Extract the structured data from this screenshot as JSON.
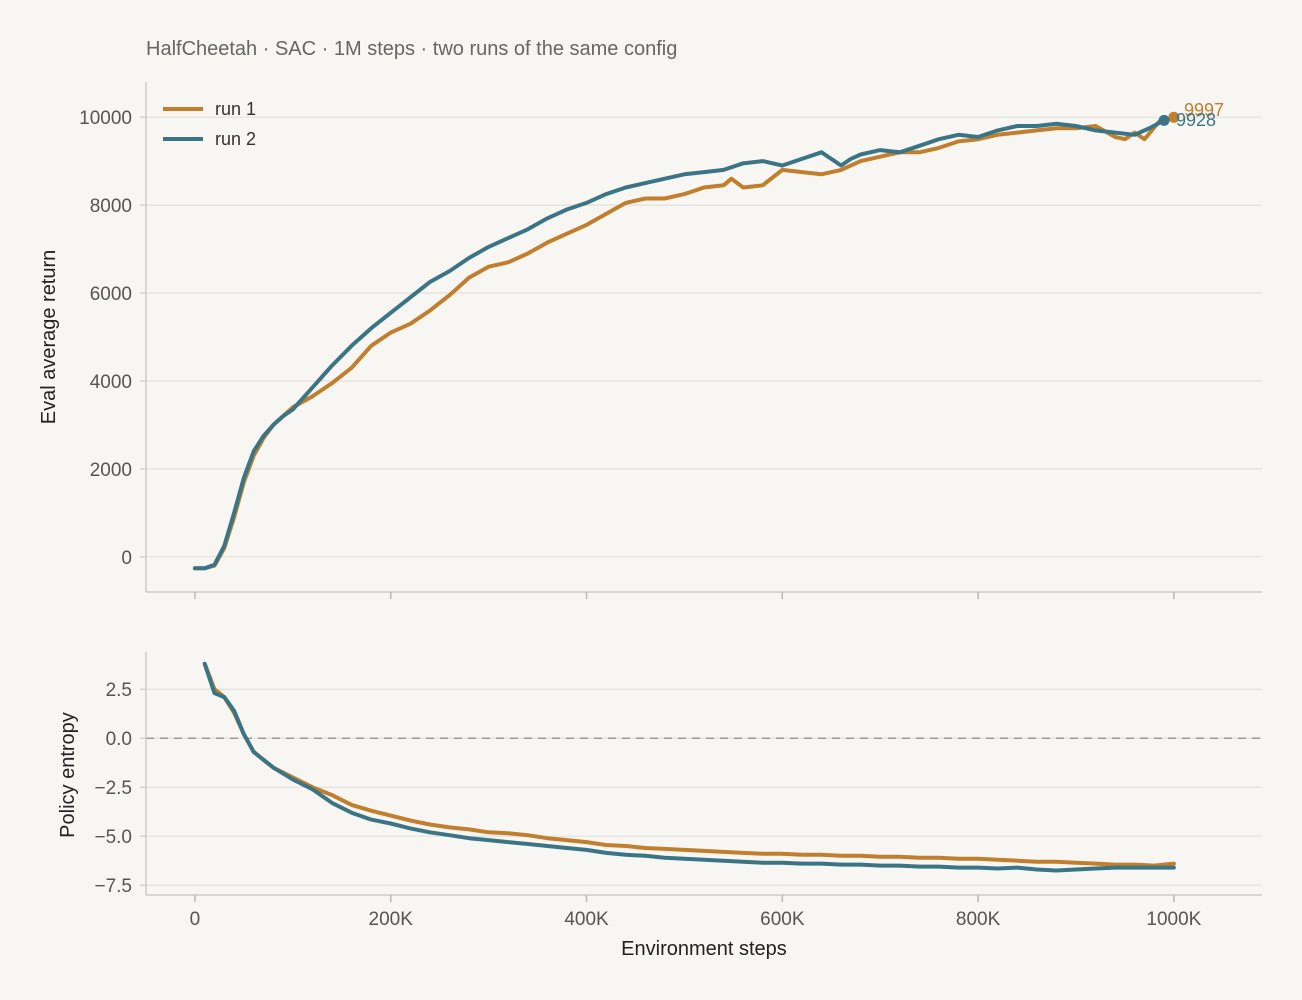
{
  "chart_data": [
    {
      "type": "line",
      "title": "HalfCheetah · SAC · 1M steps · two runs of the same config",
      "xlabel": "",
      "ylabel": "Eval average return",
      "xlim": [
        -50000,
        1090000
      ],
      "ylim": [
        -800,
        10800
      ],
      "yticks": [
        "0",
        "2000",
        "4000",
        "6000",
        "8000",
        "10000"
      ],
      "legend": "top-left",
      "grid": "horizontal",
      "colors": {
        "run1": "#c17f2e",
        "run2": "#3b7585"
      },
      "series": [
        {
          "name": "run 1",
          "x": [
            0,
            10000,
            20000,
            30000,
            40000,
            50000,
            60000,
            70000,
            80000,
            90000,
            100000,
            120000,
            140000,
            160000,
            180000,
            200000,
            220000,
            240000,
            260000,
            280000,
            300000,
            320000,
            340000,
            360000,
            380000,
            400000,
            420000,
            440000,
            460000,
            480000,
            500000,
            520000,
            540000,
            548000,
            560000,
            580000,
            600000,
            620000,
            640000,
            660000,
            680000,
            700000,
            720000,
            740000,
            760000,
            780000,
            800000,
            820000,
            840000,
            860000,
            880000,
            900000,
            920000,
            940000,
            950000,
            960000,
            970000,
            985000,
            1000000
          ],
          "values": [
            -260,
            -260,
            -200,
            200,
            900,
            1700,
            2300,
            2700,
            3000,
            3200,
            3400,
            3650,
            3950,
            4300,
            4800,
            5100,
            5300,
            5600,
            5950,
            6350,
            6600,
            6700,
            6900,
            7150,
            7350,
            7550,
            7800,
            8050,
            8150,
            8150,
            8250,
            8400,
            8450,
            8600,
            8400,
            8450,
            8800,
            8750,
            8700,
            8800,
            9000,
            9100,
            9200,
            9200,
            9300,
            9450,
            9500,
            9600,
            9650,
            9700,
            9750,
            9750,
            9800,
            9550,
            9500,
            9650,
            9500,
            9900,
            9997
          ]
        },
        {
          "name": "run 2",
          "x": [
            0,
            10000,
            20000,
            30000,
            40000,
            50000,
            60000,
            70000,
            80000,
            90000,
            100000,
            120000,
            140000,
            160000,
            180000,
            200000,
            220000,
            240000,
            260000,
            280000,
            300000,
            320000,
            340000,
            360000,
            380000,
            400000,
            420000,
            440000,
            460000,
            480000,
            500000,
            520000,
            540000,
            560000,
            580000,
            600000,
            620000,
            640000,
            660000,
            670000,
            680000,
            700000,
            720000,
            740000,
            760000,
            780000,
            800000,
            820000,
            840000,
            860000,
            880000,
            900000,
            920000,
            940000,
            960000,
            975000,
            990000
          ],
          "values": [
            -260,
            -260,
            -180,
            250,
            1000,
            1800,
            2400,
            2750,
            3000,
            3200,
            3350,
            3850,
            4350,
            4800,
            5200,
            5550,
            5900,
            6250,
            6500,
            6800,
            7050,
            7250,
            7450,
            7700,
            7900,
            8050,
            8250,
            8400,
            8500,
            8600,
            8700,
            8750,
            8800,
            8950,
            9000,
            8900,
            9050,
            9200,
            8900,
            9050,
            9150,
            9250,
            9200,
            9350,
            9500,
            9600,
            9550,
            9700,
            9800,
            9800,
            9850,
            9800,
            9700,
            9650,
            9600,
            9750,
            9928
          ]
        }
      ],
      "annotations": [
        "9997",
        "9928"
      ]
    },
    {
      "type": "line",
      "xlabel": "Environment steps",
      "ylabel": "Policy entropy",
      "xlim": [
        -50000,
        1090000
      ],
      "ylim": [
        -8,
        4.4
      ],
      "xticks": [
        "0",
        "200K",
        "400K",
        "600K",
        "800K",
        "1000K"
      ],
      "yticks": [
        "2.5",
        "0.0",
        "−2.5",
        "−5.0",
        "−7.5"
      ],
      "reference_line": {
        "y": 0,
        "style": "dashed"
      },
      "grid": "horizontal",
      "series": [
        {
          "name": "run 1",
          "x": [
            10000,
            20000,
            30000,
            40000,
            50000,
            60000,
            70000,
            80000,
            100000,
            120000,
            140000,
            160000,
            180000,
            200000,
            220000,
            240000,
            260000,
            280000,
            300000,
            320000,
            340000,
            360000,
            380000,
            400000,
            420000,
            440000,
            460000,
            480000,
            500000,
            520000,
            540000,
            560000,
            580000,
            600000,
            620000,
            640000,
            660000,
            680000,
            700000,
            720000,
            740000,
            760000,
            780000,
            800000,
            820000,
            840000,
            860000,
            880000,
            900000,
            920000,
            940000,
            960000,
            980000,
            1000000
          ],
          "values": [
            3.8,
            2.5,
            2.1,
            1.3,
            0.2,
            -0.7,
            -1.1,
            -1.5,
            -2.0,
            -2.5,
            -2.9,
            -3.4,
            -3.7,
            -3.95,
            -4.2,
            -4.4,
            -4.55,
            -4.65,
            -4.8,
            -4.85,
            -4.95,
            -5.1,
            -5.2,
            -5.3,
            -5.45,
            -5.5,
            -5.6,
            -5.65,
            -5.7,
            -5.75,
            -5.8,
            -5.85,
            -5.9,
            -5.9,
            -5.95,
            -5.95,
            -6.0,
            -6.0,
            -6.05,
            -6.05,
            -6.1,
            -6.1,
            -6.15,
            -6.15,
            -6.2,
            -6.25,
            -6.3,
            -6.3,
            -6.35,
            -6.4,
            -6.45,
            -6.45,
            -6.5,
            -6.4
          ]
        },
        {
          "name": "run 2",
          "x": [
            10000,
            20000,
            30000,
            40000,
            50000,
            60000,
            70000,
            80000,
            100000,
            120000,
            140000,
            160000,
            180000,
            200000,
            220000,
            240000,
            260000,
            280000,
            300000,
            320000,
            340000,
            360000,
            380000,
            400000,
            420000,
            440000,
            460000,
            480000,
            500000,
            520000,
            540000,
            560000,
            580000,
            600000,
            620000,
            640000,
            660000,
            680000,
            700000,
            720000,
            740000,
            760000,
            780000,
            800000,
            820000,
            840000,
            860000,
            880000,
            900000,
            920000,
            940000,
            960000,
            980000,
            1000000
          ],
          "values": [
            3.8,
            2.3,
            2.1,
            1.4,
            0.2,
            -0.7,
            -1.1,
            -1.5,
            -2.1,
            -2.6,
            -3.3,
            -3.8,
            -4.15,
            -4.35,
            -4.6,
            -4.8,
            -4.95,
            -5.1,
            -5.2,
            -5.3,
            -5.4,
            -5.5,
            -5.6,
            -5.7,
            -5.85,
            -5.95,
            -6.0,
            -6.1,
            -6.15,
            -6.2,
            -6.25,
            -6.3,
            -6.35,
            -6.35,
            -6.4,
            -6.4,
            -6.45,
            -6.45,
            -6.5,
            -6.5,
            -6.55,
            -6.55,
            -6.6,
            -6.6,
            -6.65,
            -6.6,
            -6.7,
            -6.75,
            -6.7,
            -6.65,
            -6.6,
            -6.6,
            -6.6,
            -6.6
          ]
        }
      ]
    }
  ]
}
